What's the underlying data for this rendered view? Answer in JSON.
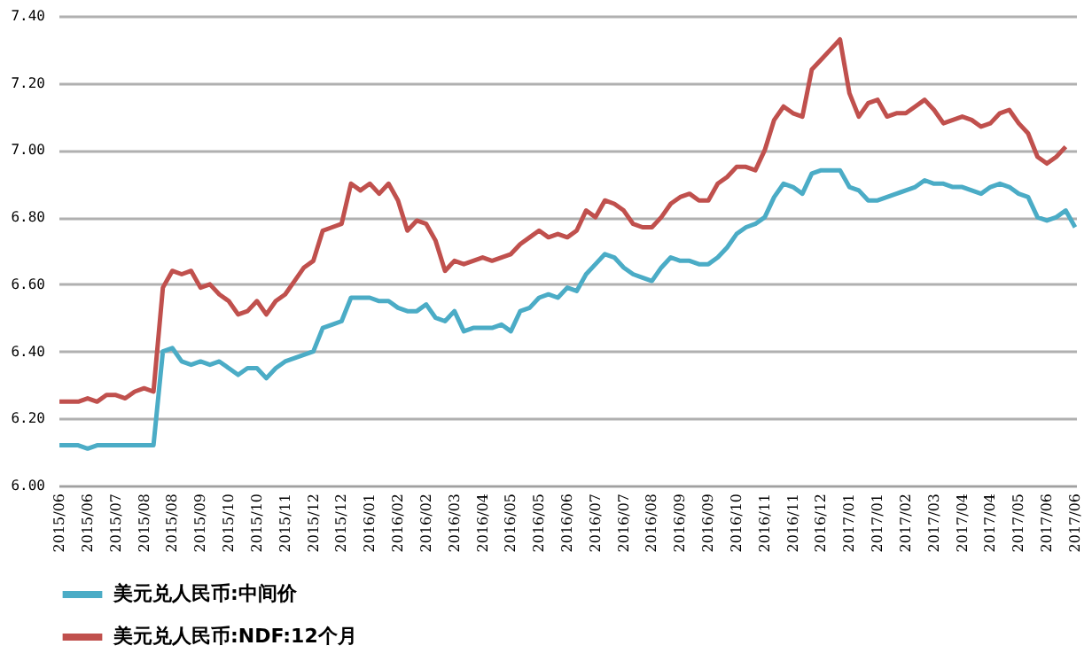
{
  "chart_data": {
    "type": "line",
    "categories": [
      "2015/06",
      null,
      null,
      "2015/06",
      null,
      null,
      "2015/07",
      null,
      null,
      "2015/08",
      null,
      null,
      "2015/08",
      null,
      null,
      "2015/09",
      null,
      null,
      "2015/10",
      null,
      null,
      "2015/10",
      null,
      null,
      "2015/11",
      null,
      null,
      "2015/12",
      null,
      null,
      "2015/12",
      null,
      null,
      "2016/01",
      null,
      null,
      "2016/02",
      null,
      null,
      "2016/02",
      null,
      null,
      "2016/03",
      null,
      null,
      "2016/04",
      null,
      null,
      "2016/05",
      null,
      null,
      "2016/05",
      null,
      null,
      "2016/06",
      null,
      null,
      "2016/07",
      null,
      null,
      "2016/07",
      null,
      null,
      "2016/08",
      null,
      null,
      "2016/09",
      null,
      null,
      "2016/09",
      null,
      null,
      "2016/10",
      null,
      null,
      "2016/11",
      null,
      null,
      "2016/11",
      null,
      null,
      "2016/12",
      null,
      null,
      "2017/01",
      null,
      null,
      "2017/01",
      null,
      null,
      "2017/02",
      null,
      null,
      "2017/03",
      null,
      null,
      "2017/04",
      null,
      null,
      "2017/04",
      null,
      null,
      "2017/05",
      null,
      null,
      "2017/06",
      null,
      null,
      "2017/06"
    ],
    "series": [
      {
        "name": "美元兑人民币:中间价",
        "color": "#4bacc6",
        "values": [
          6.12,
          6.12,
          6.12,
          6.11,
          6.12,
          6.12,
          6.12,
          6.12,
          6.12,
          6.12,
          6.12,
          6.4,
          6.41,
          6.37,
          6.36,
          6.37,
          6.36,
          6.37,
          6.35,
          6.33,
          6.35,
          6.35,
          6.32,
          6.35,
          6.37,
          6.38,
          6.39,
          6.4,
          6.47,
          6.48,
          6.49,
          6.56,
          6.56,
          6.56,
          6.55,
          6.55,
          6.53,
          6.52,
          6.52,
          6.54,
          6.5,
          6.49,
          6.52,
          6.46,
          6.47,
          6.47,
          6.47,
          6.48,
          6.46,
          6.52,
          6.53,
          6.56,
          6.57,
          6.56,
          6.59,
          6.58,
          6.63,
          6.66,
          6.69,
          6.68,
          6.65,
          6.63,
          6.62,
          6.61,
          6.65,
          6.68,
          6.67,
          6.67,
          6.66,
          6.66,
          6.68,
          6.71,
          6.75,
          6.77,
          6.78,
          6.8,
          6.86,
          6.9,
          6.89,
          6.87,
          6.93,
          6.94,
          6.94,
          6.94,
          6.89,
          6.88,
          6.85,
          6.85,
          6.86,
          6.87,
          6.88,
          6.89,
          6.91,
          6.9,
          6.9,
          6.89,
          6.89,
          6.88,
          6.87,
          6.89,
          6.9,
          6.89,
          6.87,
          6.86,
          6.8,
          6.79,
          6.8,
          6.82,
          6.77
        ]
      },
      {
        "name": "美元兑人民币:NDF:12个月",
        "color": "#c0504d",
        "values": [
          6.25,
          6.25,
          6.25,
          6.26,
          6.25,
          6.27,
          6.27,
          6.26,
          6.28,
          6.29,
          6.28,
          6.59,
          6.64,
          6.63,
          6.64,
          6.59,
          6.6,
          6.57,
          6.55,
          6.51,
          6.52,
          6.55,
          6.51,
          6.55,
          6.57,
          6.61,
          6.65,
          6.67,
          6.76,
          6.77,
          6.78,
          6.9,
          6.88,
          6.9,
          6.87,
          6.9,
          6.85,
          6.76,
          6.79,
          6.78,
          6.73,
          6.64,
          6.67,
          6.66,
          6.67,
          6.68,
          6.67,
          6.68,
          6.69,
          6.72,
          6.74,
          6.76,
          6.74,
          6.75,
          6.74,
          6.76,
          6.82,
          6.8,
          6.85,
          6.84,
          6.82,
          6.78,
          6.77,
          6.77,
          6.8,
          6.84,
          6.86,
          6.87,
          6.85,
          6.85,
          6.9,
          6.92,
          6.95,
          6.95,
          6.94,
          7.0,
          7.09,
          7.13,
          7.11,
          7.1,
          7.24,
          7.27,
          7.3,
          7.33,
          7.17,
          7.1,
          7.14,
          7.15,
          7.1,
          7.11,
          7.11,
          7.13,
          7.15,
          7.12,
          7.08,
          7.09,
          7.1,
          7.09,
          7.07,
          7.08,
          7.11,
          7.12,
          7.08,
          7.05,
          6.98,
          6.96,
          6.98,
          7.01,
          null
        ]
      }
    ],
    "ylim": [
      6.0,
      7.4
    ],
    "yticks": [
      {
        "value": 6.0,
        "label": "6.00"
      },
      {
        "value": 6.2,
        "label": "6.20"
      },
      {
        "value": 6.4,
        "label": "6.40"
      },
      {
        "value": 6.6,
        "label": "6.60"
      },
      {
        "value": 6.8,
        "label": "6.80"
      },
      {
        "value": 7.0,
        "label": "7.00"
      },
      {
        "value": 7.2,
        "label": "7.20"
      },
      {
        "value": 7.4,
        "label": "7.40"
      }
    ],
    "grid": "y",
    "legend": "bottom left",
    "marker": "none",
    "line_style": "solid"
  }
}
